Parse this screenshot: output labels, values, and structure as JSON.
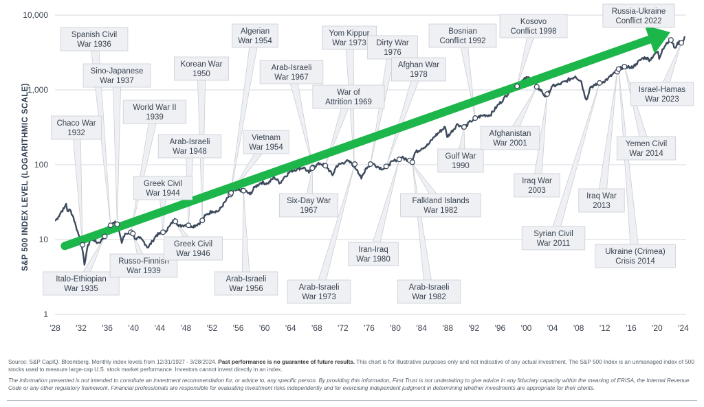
{
  "chart_data": {
    "type": "line",
    "ylabel": "S&P 500 INDEX LEVEL (LOGARITHMIC SCALE)",
    "yscale": "log",
    "ylim": [
      1,
      10000
    ],
    "xlim": [
      1928,
      2024
    ],
    "yticks": [
      {
        "value": 1,
        "label": "1"
      },
      {
        "value": 10,
        "label": "10"
      },
      {
        "value": 100,
        "label": "100"
      },
      {
        "value": 1000,
        "label": "1,000"
      },
      {
        "value": 10000,
        "label": "10,000"
      }
    ],
    "xticks": [
      {
        "value": 1928,
        "label": "'28"
      },
      {
        "value": 1932,
        "label": "'32"
      },
      {
        "value": 1936,
        "label": "'36"
      },
      {
        "value": 1940,
        "label": "'40"
      },
      {
        "value": 1944,
        "label": "'44"
      },
      {
        "value": 1948,
        "label": "'48"
      },
      {
        "value": 1952,
        "label": "'52"
      },
      {
        "value": 1956,
        "label": "'56"
      },
      {
        "value": 1960,
        "label": "'60"
      },
      {
        "value": 1964,
        "label": "'64"
      },
      {
        "value": 1968,
        "label": "'68"
      },
      {
        "value": 1972,
        "label": "'72"
      },
      {
        "value": 1976,
        "label": "'76"
      },
      {
        "value": 1980,
        "label": "'80"
      },
      {
        "value": 1984,
        "label": "'84"
      },
      {
        "value": 1988,
        "label": "'88"
      },
      {
        "value": 1992,
        "label": "'92"
      },
      {
        "value": 1996,
        "label": "'96"
      },
      {
        "value": 2000,
        "label": "'00"
      },
      {
        "value": 2004,
        "label": "'04"
      },
      {
        "value": 2008,
        "label": "'08"
      },
      {
        "value": 2012,
        "label": "'12"
      },
      {
        "value": 2016,
        "label": "'16"
      },
      {
        "value": 2020,
        "label": "'20"
      },
      {
        "value": 2024,
        "label": "'24"
      }
    ],
    "series": [
      {
        "color": "#3d4a5c",
        "points": [
          [
            1928.0,
            17.7
          ],
          [
            1928.5,
            20
          ],
          [
            1929.0,
            24
          ],
          [
            1929.4,
            26
          ],
          [
            1929.7,
            30
          ],
          [
            1929.9,
            24
          ],
          [
            1930.3,
            25
          ],
          [
            1930.8,
            20
          ],
          [
            1931.2,
            15
          ],
          [
            1931.7,
            11
          ],
          [
            1932.1,
            8
          ],
          [
            1932.5,
            4.6
          ],
          [
            1932.9,
            7.5
          ],
          [
            1933.4,
            10
          ],
          [
            1933.9,
            10
          ],
          [
            1934.5,
            9
          ],
          [
            1935.0,
            9.5
          ],
          [
            1935.5,
            11
          ],
          [
            1936.0,
            14
          ],
          [
            1936.6,
            15.5
          ],
          [
            1937.2,
            17.5
          ],
          [
            1937.8,
            13
          ],
          [
            1938.2,
            9
          ],
          [
            1938.7,
            12
          ],
          [
            1939.2,
            12
          ],
          [
            1939.7,
            12.5
          ],
          [
            1940.4,
            10
          ],
          [
            1940.9,
            10.5
          ],
          [
            1941.5,
            9.5
          ],
          [
            1942.2,
            7.8
          ],
          [
            1942.9,
            9.5
          ],
          [
            1943.5,
            11.5
          ],
          [
            1944.2,
            12
          ],
          [
            1944.9,
            13
          ],
          [
            1945.5,
            15
          ],
          [
            1946.3,
            19
          ],
          [
            1946.9,
            15
          ],
          [
            1947.5,
            15.5
          ],
          [
            1948.3,
            16
          ],
          [
            1948.9,
            15
          ],
          [
            1949.5,
            15.5
          ],
          [
            1950.2,
            17
          ],
          [
            1951.0,
            21
          ],
          [
            1952.0,
            24
          ],
          [
            1953.0,
            24
          ],
          [
            1954.0,
            32
          ],
          [
            1955.0,
            43
          ],
          [
            1956.0,
            46
          ],
          [
            1957.0,
            45
          ],
          [
            1957.8,
            40
          ],
          [
            1958.5,
            50
          ],
          [
            1959.5,
            58
          ],
          [
            1960.5,
            56
          ],
          [
            1961.5,
            68
          ],
          [
            1962.4,
            57
          ],
          [
            1963.0,
            68
          ],
          [
            1964.0,
            82
          ],
          [
            1965.0,
            88
          ],
          [
            1966.0,
            92
          ],
          [
            1966.8,
            78
          ],
          [
            1967.5,
            94
          ],
          [
            1968.5,
            104
          ],
          [
            1969.5,
            95
          ],
          [
            1970.4,
            72
          ],
          [
            1971.0,
            96
          ],
          [
            1972.5,
            112
          ],
          [
            1973.3,
            105
          ],
          [
            1974.2,
            85
          ],
          [
            1974.8,
            65
          ],
          [
            1975.5,
            90
          ],
          [
            1976.5,
            104
          ],
          [
            1977.5,
            92
          ],
          [
            1978.2,
            88
          ],
          [
            1979.0,
            101
          ],
          [
            1980.0,
            115
          ],
          [
            1981.0,
            124
          ],
          [
            1982.0,
            116
          ],
          [
            1982.5,
            107
          ],
          [
            1983.0,
            145
          ],
          [
            1984.0,
            165
          ],
          [
            1985.0,
            185
          ],
          [
            1986.0,
            240
          ],
          [
            1987.6,
            320
          ],
          [
            1987.9,
            235
          ],
          [
            1988.5,
            270
          ],
          [
            1989.5,
            350
          ],
          [
            1990.5,
            310
          ],
          [
            1991.5,
            380
          ],
          [
            1992.5,
            430
          ],
          [
            1993.5,
            460
          ],
          [
            1994.5,
            460
          ],
          [
            1995.5,
            600
          ],
          [
            1996.5,
            750
          ],
          [
            1997.5,
            970
          ],
          [
            1998.5,
            1100
          ],
          [
            1999.5,
            1350
          ],
          [
            2000.3,
            1480
          ],
          [
            2001.0,
            1300
          ],
          [
            2001.7,
            1080
          ],
          [
            2002.4,
            950
          ],
          [
            2002.8,
            820
          ],
          [
            2003.3,
            880
          ],
          [
            2004.0,
            1120
          ],
          [
            2005.0,
            1180
          ],
          [
            2006.0,
            1300
          ],
          [
            2007.5,
            1520
          ],
          [
            2008.4,
            1300
          ],
          [
            2008.9,
            850
          ],
          [
            2009.2,
            740
          ],
          [
            2009.8,
            1100
          ],
          [
            2010.5,
            1150
          ],
          [
            2011.5,
            1250
          ],
          [
            2012.5,
            1420
          ],
          [
            2013.5,
            1700
          ],
          [
            2014.5,
            1980
          ],
          [
            2015.5,
            2060
          ],
          [
            2016.0,
            1950
          ],
          [
            2016.8,
            2230
          ],
          [
            2017.8,
            2670
          ],
          [
            2018.3,
            2700
          ],
          [
            2018.9,
            2500
          ],
          [
            2019.5,
            2950
          ],
          [
            2020.1,
            3250
          ],
          [
            2020.3,
            2600
          ],
          [
            2020.8,
            3500
          ],
          [
            2021.5,
            4300
          ],
          [
            2022.0,
            4700
          ],
          [
            2022.7,
            3650
          ],
          [
            2023.0,
            4000
          ],
          [
            2023.5,
            4500
          ],
          [
            2023.8,
            4200
          ],
          [
            2024.2,
            5200
          ]
        ]
      }
    ],
    "trend_arrow": {
      "color": "#1db64a",
      "from": [
        1929.5,
        8.2
      ],
      "to": [
        2022.0,
        5900
      ]
    },
    "annotations": [
      {
        "label": [
          "Chaco War",
          "1932"
        ],
        "point": [
          1932.2,
          8.5
        ]
      },
      {
        "label": [
          "Italo-Ethiopian",
          "War 1935"
        ],
        "point": [
          1935.6,
          11
        ]
      },
      {
        "label": [
          "Spanish Civil",
          "War 1936"
        ],
        "point": [
          1936.5,
          15.5
        ]
      },
      {
        "label": [
          "Sino-Japanese",
          "War 1937"
        ],
        "point": [
          1937.5,
          16
        ]
      },
      {
        "label": [
          "World War II",
          "1939"
        ],
        "point": [
          1939.6,
          12.5
        ]
      },
      {
        "label": [
          "Russo-Finnish",
          "War 1939"
        ],
        "point": [
          1939.9,
          12
        ]
      },
      {
        "label": [
          "Greek Civil",
          "War 1944"
        ],
        "point": [
          1944.5,
          12.5
        ]
      },
      {
        "label": [
          "Greek Civil",
          "War 1946"
        ],
        "point": [
          1946.4,
          17.5
        ]
      },
      {
        "label": [
          "Arab-Israeli",
          "War 1948"
        ],
        "point": [
          1948.4,
          15.5
        ]
      },
      {
        "label": [
          "Korean War",
          "1950"
        ],
        "point": [
          1950.5,
          18
        ]
      },
      {
        "label": [
          "Algerian",
          "War 1954"
        ],
        "point": [
          1954.8,
          40
        ]
      },
      {
        "label": [
          "Vietnam",
          "War 1954"
        ],
        "point": [
          1954.9,
          42
        ]
      },
      {
        "label": [
          "Arab-Israeli",
          "War 1956"
        ],
        "point": [
          1956.8,
          45
        ]
      },
      {
        "label": [
          "Arab-Israeli",
          "War 1967"
        ],
        "point": [
          1967.4,
          92
        ]
      },
      {
        "label": [
          "Six-Day War",
          "1967"
        ],
        "point": [
          1967.3,
          90
        ]
      },
      {
        "label": [
          "War of",
          "Attrition 1969"
        ],
        "point": [
          1969.3,
          97
        ]
      },
      {
        "label": [
          "Yom Kippur",
          "War 1973"
        ],
        "point": [
          1973.7,
          100
        ]
      },
      {
        "label": [
          "Arab-Israeli",
          "War 1973"
        ],
        "point": [
          1973.8,
          102
        ]
      },
      {
        "label": [
          "Dirty War",
          "1976"
        ],
        "point": [
          1976.2,
          102
        ]
      },
      {
        "label": [
          "Iran-Iraq",
          "War 1980"
        ],
        "point": [
          1980.6,
          118
        ]
      },
      {
        "label": [
          "Afghan War",
          "1978"
        ],
        "point": [
          1978.6,
          95
        ]
      },
      {
        "label": [
          "Falkland Islands",
          "War 1982"
        ],
        "point": [
          1982.2,
          114
        ]
      },
      {
        "label": [
          "Arab-Israeli",
          "War 1982"
        ],
        "point": [
          1982.6,
          108
        ]
      },
      {
        "label": [
          "Gulf War",
          "1990"
        ],
        "point": [
          1990.5,
          320
        ]
      },
      {
        "label": [
          "Bosnian",
          "Conflict 1992"
        ],
        "point": [
          1992.2,
          420
        ]
      },
      {
        "label": [
          "Kosovo",
          "Conflict 1998"
        ],
        "point": [
          1998.6,
          1120
        ]
      },
      {
        "label": [
          "Afghanistan",
          "War 2001"
        ],
        "point": [
          2001.6,
          1100
        ]
      },
      {
        "label": [
          "Iraq War",
          "2003"
        ],
        "point": [
          2003.2,
          880
        ]
      },
      {
        "label": [
          "Syrian Civil",
          "War 2011"
        ],
        "point": [
          2011.2,
          1240
        ]
      },
      {
        "label": [
          "Iraq War",
          "2013"
        ],
        "point": [
          2013.9,
          1750
        ]
      },
      {
        "label": [
          "Ukraine (Crimea)",
          "Crisis 2014"
        ],
        "point": [
          2014.1,
          1900
        ]
      },
      {
        "label": [
          "Yemen Civil",
          "War 2014"
        ],
        "point": [
          2015.0,
          2050
        ]
      },
      {
        "label": [
          "Russia-Ukraine",
          "Conflict 2022"
        ],
        "point": [
          2022.1,
          4650
        ]
      },
      {
        "label": [
          "Israel-Hamas",
          "War 2023"
        ],
        "point": [
          2023.7,
          4250
        ]
      }
    ]
  },
  "footer": {
    "source_intro": "Source: S&P CapIQ. Bloomberg. Monthly index levels from 12/31/1927 - 3/28/2024.",
    "source_bold": "Past performance is no guarantee of future results.",
    "source_rest": "This chart is for illustrative purposes only and not indicative of any actual investment. The S&P 500 Index is an unmanaged index of 500 stocks used to measure large-cap U.S. stock market performance. Investors cannot invest directly in an index.",
    "disclaimer": "The information presented is not intended to constitute an investment recommendation for, or advice to, any specific person. By providing this information, First Trust is not undertaking to give advice in any fiduciary capacity within the meaning of ERISA, the Internal Revenue Code or any other regulatory framework. Financial professionals are responsible for evaluating investment risks independently and for exercising independent judgment in determining whether investments are appropriate for their clients."
  }
}
